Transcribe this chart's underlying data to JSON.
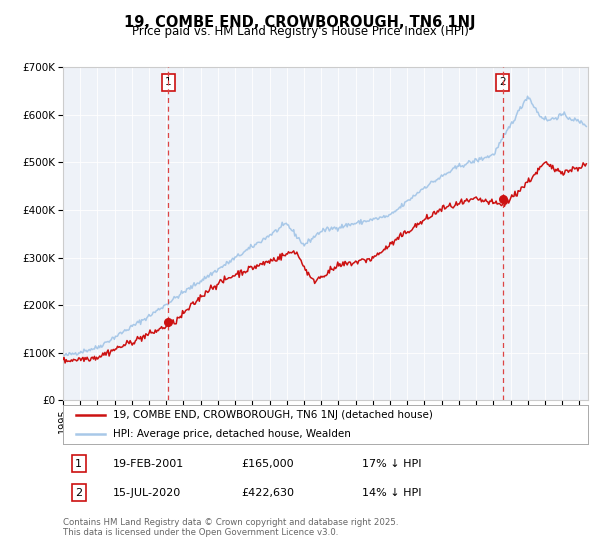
{
  "title": "19, COMBE END, CROWBOROUGH, TN6 1NJ",
  "subtitle": "Price paid vs. HM Land Registry's House Price Index (HPI)",
  "ylim": [
    0,
    700000
  ],
  "yticks": [
    0,
    100000,
    200000,
    300000,
    400000,
    500000,
    600000,
    700000
  ],
  "ytick_labels": [
    "£0",
    "£100K",
    "£200K",
    "£300K",
    "£400K",
    "£500K",
    "£600K",
    "£700K"
  ],
  "hpi_color": "#a8c8e8",
  "price_color": "#cc1111",
  "marker_color": "#cc1111",
  "vline_color": "#dd4444",
  "background_color": "#eef2f8",
  "plot_border_color": "#cccccc",
  "legend_label_price": "19, COMBE END, CROWBOROUGH, TN6 1NJ (detached house)",
  "legend_label_hpi": "HPI: Average price, detached house, Wealden",
  "annotation1_num": "1",
  "annotation1_date": "19-FEB-2001",
  "annotation1_price": "£165,000",
  "annotation1_hpi": "17% ↓ HPI",
  "annotation2_num": "2",
  "annotation2_date": "15-JUL-2020",
  "annotation2_price": "£422,630",
  "annotation2_hpi": "14% ↓ HPI",
  "footer": "Contains HM Land Registry data © Crown copyright and database right 2025.\nThis data is licensed under the Open Government Licence v3.0.",
  "vline1_x": 2001.12,
  "vline2_x": 2020.54,
  "marker1_x": 2001.12,
  "marker1_y": 165000,
  "marker2_x": 2020.54,
  "marker2_y": 422630,
  "xmin": 1995.0,
  "xmax": 2025.5
}
